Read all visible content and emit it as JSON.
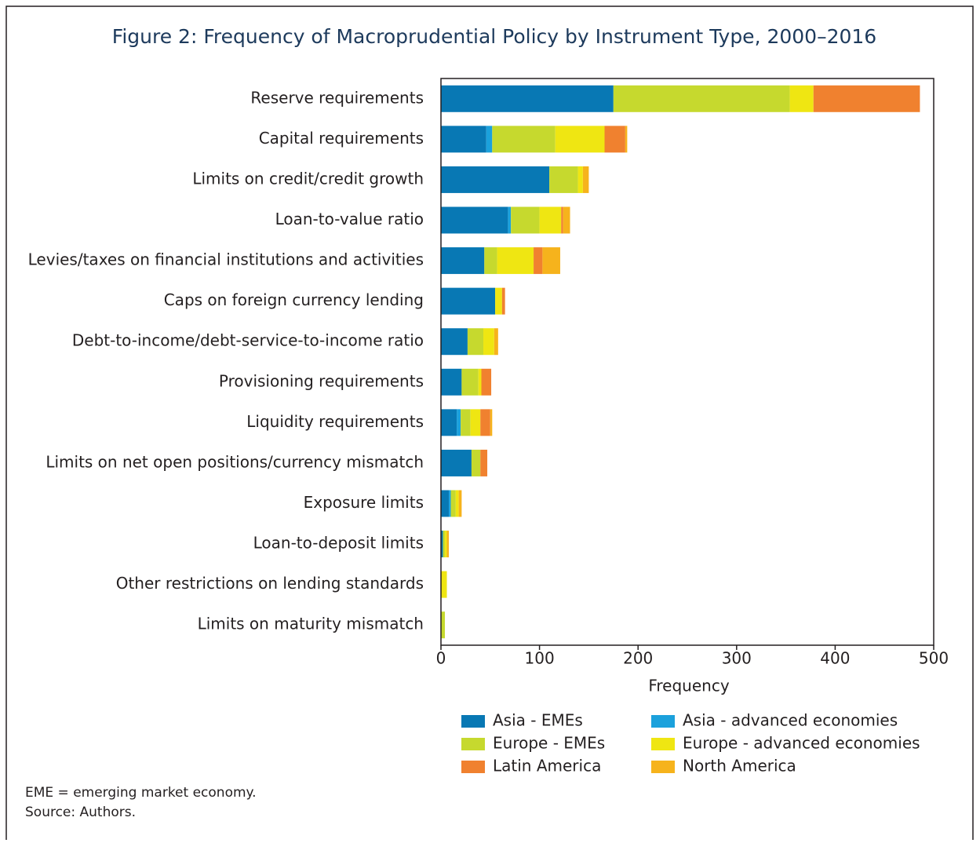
{
  "chart_data": {
    "type": "bar",
    "orientation": "horizontal",
    "stacked": true,
    "title": "Figure 2: Frequency of Macroprudential Policy by Instrument Type, 2000–2016",
    "xlabel": "Frequency",
    "categories": [
      "Reserve requirements",
      "Capital requirements",
      "Limits on credit/credit growth",
      "Loan-to-value ratio",
      "Levies/taxes on financial institutions and activities",
      "Caps on foreign currency lending",
      "Debt-to-income/debt-service-to-income ratio",
      "Provisioning requirements",
      "Liquidity requirements",
      "Limits on net open positions/currency mismatch",
      "Exposure limits",
      "Loan-to-deposit limits",
      "Other restrictions on lending standards",
      "Limits on maturity mismatch"
    ],
    "series": [
      {
        "name": "Asia - EMEs",
        "color": "#0878b4",
        "values": [
          175,
          46,
          110,
          68,
          44,
          55,
          27,
          21,
          16,
          31,
          8,
          2,
          0,
          0
        ]
      },
      {
        "name": "Asia - advanced economies",
        "color": "#1ba1dc",
        "values": [
          0,
          6,
          0,
          3,
          0,
          0,
          0,
          0,
          4,
          0,
          2,
          0,
          0,
          0
        ]
      },
      {
        "name": "Europe - EMEs",
        "color": "#c6d92e",
        "values": [
          179,
          64,
          29,
          29,
          13,
          0,
          16,
          17,
          10,
          9,
          5,
          2,
          0,
          4
        ]
      },
      {
        "name": "Europe - advanced economies",
        "color": "#efe612",
        "values": [
          24,
          50,
          5,
          22,
          37,
          7,
          11,
          3,
          10,
          0,
          3,
          2,
          6,
          0
        ]
      },
      {
        "name": "Latin America",
        "color": "#f0812f",
        "values": [
          108,
          21,
          0,
          2,
          9,
          3,
          0,
          10,
          10,
          7,
          0,
          0,
          0,
          0
        ]
      },
      {
        "name": "North America",
        "color": "#f6b31c",
        "values": [
          0,
          2,
          6,
          7,
          18,
          0,
          4,
          0,
          2,
          0,
          3,
          2,
          0,
          0
        ]
      }
    ],
    "xlim": [
      0,
      500
    ],
    "xticks": [
      0,
      100,
      200,
      300,
      400,
      500
    ],
    "notes": [
      "EME = emerging market economy.",
      "Source: Authors."
    ]
  }
}
